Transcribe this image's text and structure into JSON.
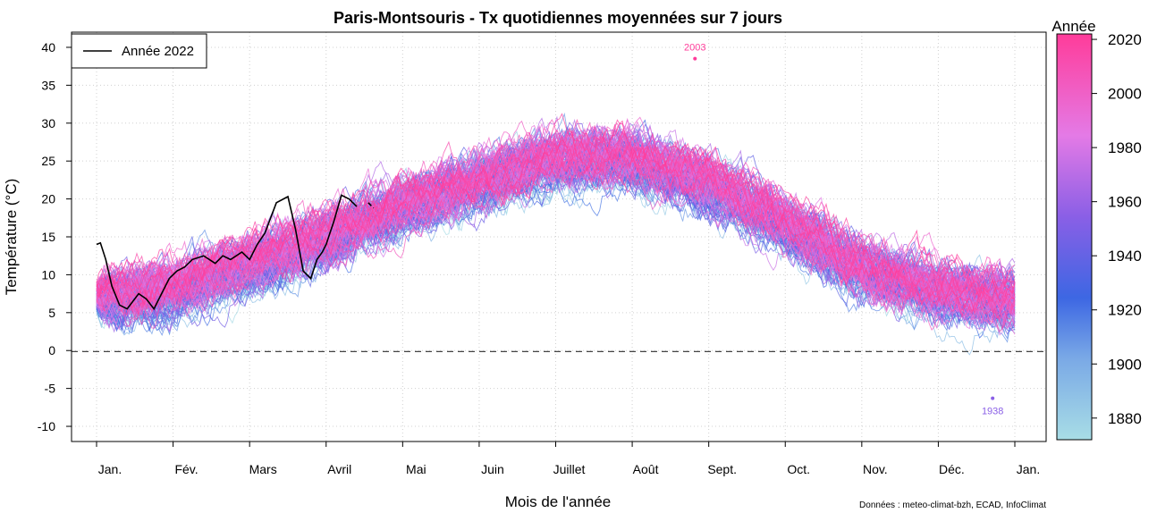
{
  "chart_data": {
    "type": "line",
    "title": "Paris-Montsouris - Tx quotidiennes moyennées sur 7 jours",
    "xlabel": "Mois de l'année",
    "ylabel": "Température (°C)",
    "ylim": [
      -12,
      42
    ],
    "yticks": [
      -10,
      -5,
      0,
      5,
      10,
      15,
      20,
      25,
      30,
      35,
      40
    ],
    "x_categories": [
      "Jan.",
      "Fév.",
      "Mars",
      "Avril",
      "Mai",
      "Juin",
      "Juillet",
      "Août",
      "Sept.",
      "Oct.",
      "Nov.",
      "Déc.",
      "Jan."
    ],
    "grid": true,
    "reference_line": 0,
    "legend": {
      "position": "top-left",
      "label": "Année 2022",
      "color": "#000000"
    },
    "colorbar": {
      "title": "Année",
      "range": [
        1872,
        2022
      ],
      "ticks": [
        1880,
        1900,
        1920,
        1940,
        1960,
        1980,
        2000,
        2020
      ],
      "colors": [
        "#a8dde6",
        "#7aa9e6",
        "#3d67e3",
        "#8a5fe6",
        "#e47ae6",
        "#ff3c9a"
      ]
    },
    "annotations": [
      {
        "text": "2003",
        "x": 7.82,
        "y": 38.5,
        "color": "#ff3c9a"
      },
      {
        "text": "1938",
        "x": 11.71,
        "y": -6.3,
        "color": "#8a5fe6"
      }
    ],
    "climatology": {
      "description_months": [
        0,
        1,
        2,
        3,
        4,
        5,
        6,
        7,
        8,
        9,
        10,
        11,
        12
      ],
      "mean": [
        7.0,
        8.0,
        11.5,
        15.0,
        19.0,
        22.5,
        25.3,
        25.5,
        22.0,
        16.8,
        11.0,
        7.8,
        6.8
      ],
      "spread": [
        5.0,
        5.0,
        5.0,
        5.0,
        5.0,
        5.0,
        5.0,
        5.0,
        5.0,
        5.0,
        5.0,
        5.0,
        5.0
      ]
    },
    "series": [
      {
        "name": "Année 2022",
        "color": "#000000",
        "x": [
          0.0,
          0.05,
          0.12,
          0.2,
          0.3,
          0.4,
          0.55,
          0.65,
          0.75,
          0.85,
          0.95,
          1.05,
          1.15,
          1.25,
          1.4,
          1.55,
          1.65,
          1.75,
          1.9,
          2.0,
          2.1,
          2.2,
          2.35,
          2.5,
          2.6,
          2.7,
          2.8,
          2.88,
          2.95,
          3.0,
          3.05,
          3.1,
          3.2,
          3.3,
          3.4,
          3.48,
          3.55,
          3.62
        ],
        "y": [
          14.0,
          14.2,
          12.0,
          8.5,
          6.0,
          5.5,
          7.5,
          6.8,
          5.5,
          7.5,
          9.5,
          10.5,
          11.0,
          12.0,
          12.5,
          11.5,
          12.5,
          12.0,
          13.0,
          12.0,
          14.0,
          15.5,
          19.5,
          20.3,
          16.0,
          10.5,
          9.5,
          12.0,
          13.0,
          14.0,
          15.5,
          17.0,
          20.5,
          20.0,
          19.0,
          null,
          19.5,
          18.8
        ]
      }
    ],
    "credit": "Données : meteo-climat-bzh, ECAD, InfoClimat"
  }
}
